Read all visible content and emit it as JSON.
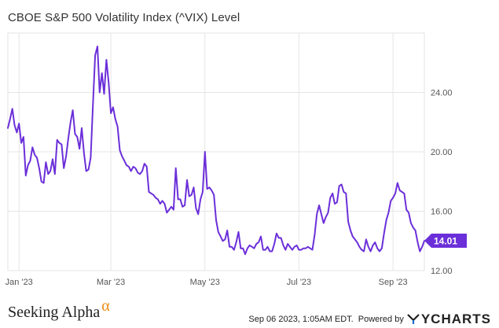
{
  "title": "CBOE S&P 500 Volatility Index (^VIX) Level",
  "chart_data": {
    "type": "line",
    "title": "CBOE S&P 500 Volatility Index (^VIX) Level",
    "xlabel": "",
    "ylabel": "",
    "ylim": [
      12,
      28
    ],
    "yticks": [
      "24.00",
      "20.00",
      "16.00",
      "12.00"
    ],
    "ytick_values": [
      24,
      20,
      16,
      12
    ],
    "xticks": [
      "Jan '23",
      "Mar '23",
      "May '23",
      "Jul '23",
      "Sep '23"
    ],
    "xtick_indices": [
      5,
      46,
      88,
      130,
      172
    ],
    "line_color": "#6b2fd9",
    "last_value_label": "14.01",
    "grid": true,
    "series": [
      {
        "values": [
          21.6,
          22.2,
          22.9,
          21.8,
          21.3,
          21.9,
          20.6,
          21.0,
          18.4,
          19.1,
          19.4,
          20.3,
          19.8,
          19.6,
          18.9,
          18.0,
          17.9,
          19.3,
          18.5,
          18.7,
          19.5,
          18.5,
          20.8,
          20.6,
          20.5,
          18.9,
          19.7,
          20.9,
          22.0,
          22.8,
          21.2,
          21.0,
          20.2,
          21.6,
          19.9,
          18.7,
          18.8,
          19.6,
          23.2,
          26.5,
          27.1,
          24.0,
          25.3,
          23.9,
          26.2,
          24.7,
          22.6,
          23.0,
          22.2,
          21.7,
          20.1,
          19.7,
          19.4,
          19.1,
          19.0,
          18.7,
          19.0,
          18.9,
          18.6,
          18.5,
          18.7,
          19.2,
          19.0,
          17.3,
          17.2,
          17.1,
          16.9,
          16.8,
          16.5,
          16.7,
          16.5,
          15.9,
          16.1,
          16.3,
          16.1,
          18.9,
          16.8,
          16.8,
          16.3,
          16.4,
          18.1,
          17.0,
          17.1,
          17.6,
          16.2,
          15.8,
          16.8,
          17.3,
          20.0,
          17.5,
          17.6,
          17.4,
          17.1,
          15.4,
          14.6,
          14.3,
          14.0,
          14.1,
          14.7,
          13.6,
          13.6,
          13.4,
          13.9,
          14.6,
          13.5,
          13.5,
          13.1,
          13.5,
          13.7,
          13.6,
          13.5,
          13.8,
          13.9,
          14.3,
          13.4,
          13.4,
          13.6,
          13.3,
          13.3,
          13.8,
          14.5,
          14.2,
          14.2,
          13.7,
          13.4,
          13.8,
          13.6,
          13.4,
          13.6,
          13.7,
          13.4,
          13.4,
          13.5,
          13.5,
          13.6,
          13.5,
          13.4,
          14.4,
          15.8,
          16.4,
          15.8,
          15.2,
          15.6,
          15.9,
          16.9,
          17.2,
          16.5,
          16.6,
          17.7,
          17.8,
          17.3,
          17.2,
          15.3,
          14.7,
          14.3,
          14.1,
          13.9,
          13.6,
          13.4,
          13.3,
          14.1,
          13.6,
          13.3,
          13.7,
          13.9,
          13.5,
          13.3,
          13.5,
          14.5,
          15.4,
          15.9,
          16.7,
          16.9,
          17.2,
          17.9,
          17.4,
          17.3,
          17.2,
          16.1,
          15.9,
          15.2,
          14.9,
          14.7,
          13.9,
          13.3,
          13.6,
          14.01
        ]
      }
    ]
  },
  "footer": {
    "brand": "Seeking Alpha",
    "brand_mark": "α",
    "timestamp": "Sep 06 2023, 1:05AM EDT.",
    "powered_by": "Powered by",
    "ycharts": "YCHARTS"
  }
}
